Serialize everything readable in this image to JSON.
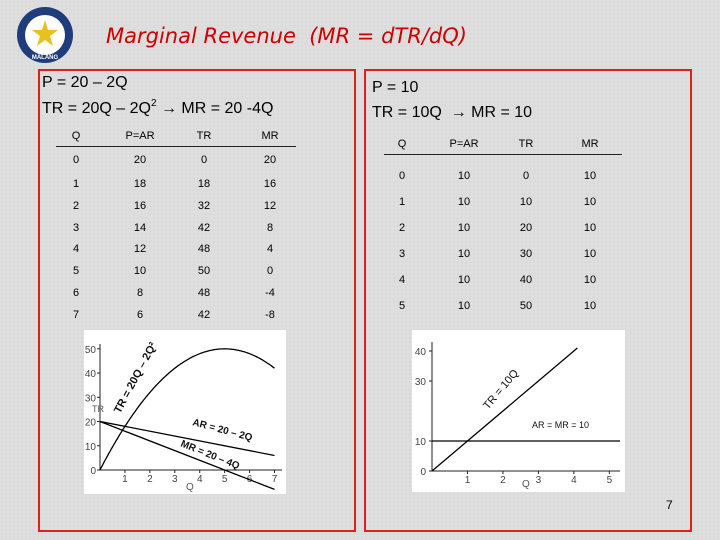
{
  "slide": {
    "title": "Marginal Revenue  (MR = dTR/dQ)",
    "page_number": "7"
  },
  "logo": {
    "text": "MALANG",
    "colors": {
      "ring": "#1f3d7a",
      "center": "#e8c020"
    }
  },
  "left": {
    "eq1": "P = 20 – 2Q",
    "eq2_a": "TR = 20Q – 2Q",
    "eq2_sup": "2",
    "eq2_b": " → MR = 20 -4Q",
    "headers": [
      "Q",
      "P=AR",
      "TR",
      "MR"
    ],
    "rows": [
      [
        "0",
        "20",
        "0",
        "20"
      ],
      [
        "1",
        "18",
        "18",
        "16"
      ],
      [
        "2",
        "16",
        "32",
        "12"
      ],
      [
        "3",
        "14",
        "42",
        "8"
      ],
      [
        "4",
        "12",
        "48",
        "4"
      ],
      [
        "5",
        "10",
        "50",
        "0"
      ],
      [
        "6",
        "8",
        "48",
        "-4"
      ],
      [
        "7",
        "6",
        "42",
        "-8"
      ]
    ]
  },
  "right": {
    "eq1": "P = 10",
    "eq2": "TR = 10Q  → MR = 10",
    "headers": [
      "Q",
      "P=AR",
      "TR",
      "MR"
    ],
    "rows": [
      [
        "0",
        "10",
        "0",
        "10"
      ],
      [
        "1",
        "10",
        "10",
        "10"
      ],
      [
        "2",
        "10",
        "20",
        "10"
      ],
      [
        "3",
        "10",
        "30",
        "10"
      ],
      [
        "4",
        "10",
        "40",
        "10"
      ],
      [
        "5",
        "10",
        "50",
        "10"
      ]
    ]
  },
  "chart_data": [
    {
      "type": "line",
      "xlabel": "Q",
      "ylabel": "TR",
      "xticks": [
        "0",
        "1",
        "2",
        "3",
        "4",
        "5",
        "6",
        "7"
      ],
      "yticks": [
        "0",
        "10",
        "20",
        "30",
        "40",
        "50"
      ],
      "xlim": [
        0,
        7.3
      ],
      "ylim": [
        0,
        52
      ],
      "series": [
        {
          "name": "TR = 20Q – 2Q²",
          "x": [
            0,
            1,
            2,
            3,
            4,
            5,
            6,
            7
          ],
          "y": [
            0,
            18,
            32,
            42,
            48,
            50,
            48,
            42
          ]
        },
        {
          "name": "AR = 20 – 2Q",
          "x": [
            0,
            7
          ],
          "y": [
            20,
            6
          ]
        },
        {
          "name": "MR = 20 – 4Q",
          "x": [
            0,
            7
          ],
          "y": [
            20,
            -8
          ]
        }
      ]
    },
    {
      "type": "line",
      "xlabel": "Q",
      "ylabel": "TR",
      "xticks": [
        "0",
        "1",
        "2",
        "3",
        "4",
        "5"
      ],
      "yticks": [
        "0",
        "10",
        "30",
        "40"
      ],
      "xlim": [
        0,
        5.3
      ],
      "ylim": [
        0,
        43
      ],
      "series": [
        {
          "name": "TR = 10Q",
          "x": [
            0,
            4.1
          ],
          "y": [
            0,
            41
          ]
        },
        {
          "name": "AR = MR = 10",
          "x": [
            0,
            5.3
          ],
          "y": [
            10,
            10
          ]
        }
      ]
    }
  ]
}
